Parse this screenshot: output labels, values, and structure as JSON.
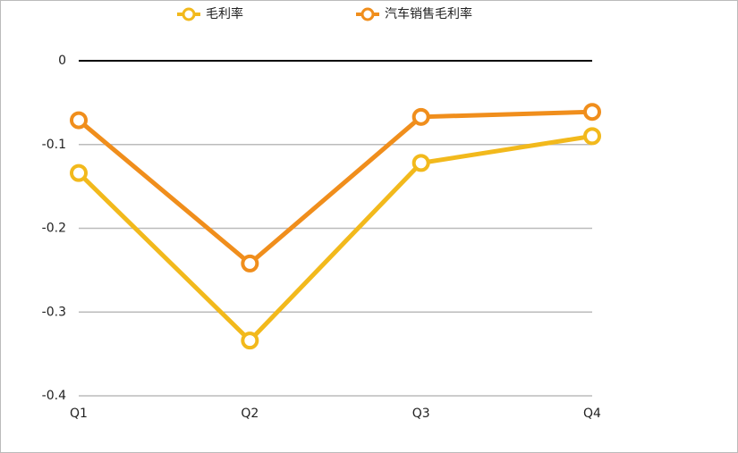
{
  "chart_data": {
    "type": "line",
    "categories": [
      "Q1",
      "Q2",
      "Q3",
      "Q4"
    ],
    "series": [
      {
        "name": "毛利率",
        "color": "#f2b91c",
        "values": [
          -0.134,
          -0.334,
          -0.122,
          -0.09
        ]
      },
      {
        "name": "汽车销售毛利率",
        "color": "#f08e1c",
        "values": [
          -0.071,
          -0.242,
          -0.067,
          -0.061
        ]
      }
    ],
    "ylim": [
      -0.4,
      0
    ],
    "yticks": [
      0,
      -0.1,
      -0.2,
      -0.3,
      -0.4
    ],
    "grid": true,
    "legend": "top"
  }
}
